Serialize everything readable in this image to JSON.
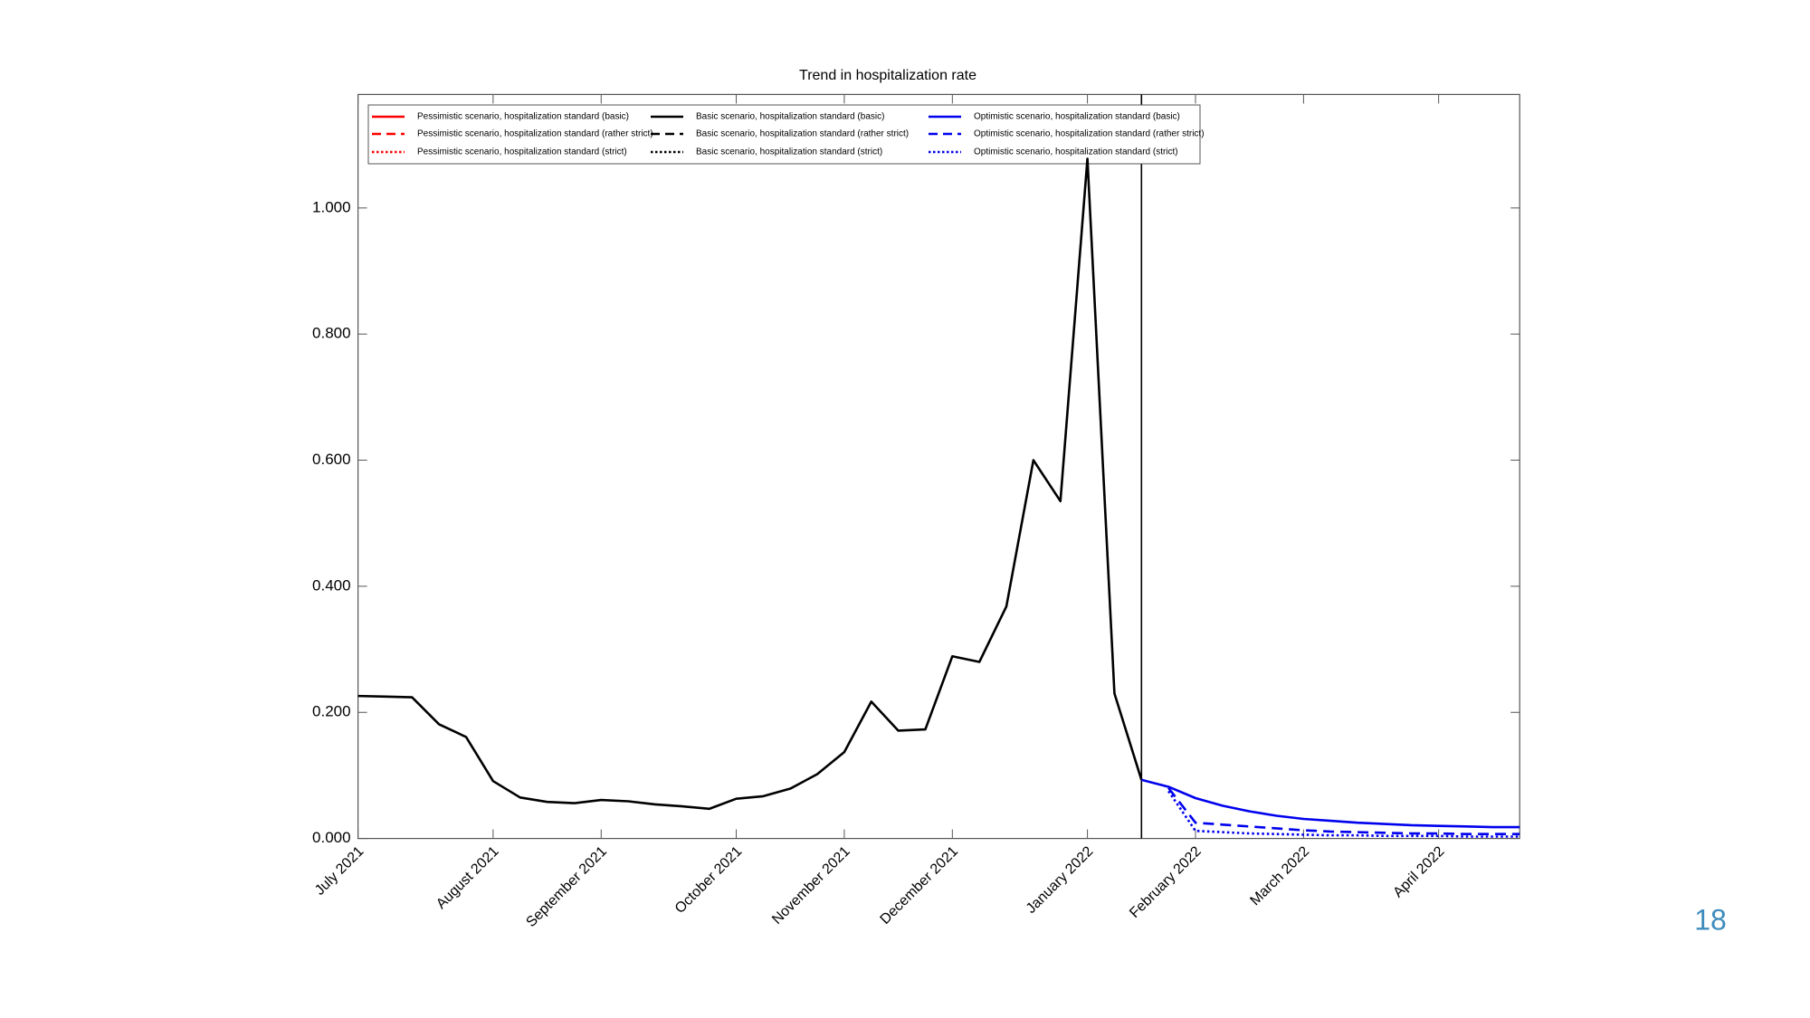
{
  "chart_data": {
    "type": "line",
    "title": "Trend in hospitalization rate",
    "categories": [
      "July 2021",
      null,
      null,
      null,
      null,
      "August 2021",
      null,
      null,
      null,
      "September 2021",
      null,
      null,
      null,
      null,
      "October 2021",
      null,
      null,
      null,
      "November 2021",
      null,
      null,
      null,
      "December 2021",
      null,
      null,
      null,
      null,
      "January 2022",
      null,
      null,
      null,
      "February 2022",
      null,
      null,
      null,
      "March 2022",
      null,
      null,
      null,
      null,
      "April 2022",
      null,
      null,
      null
    ],
    "ylim": [
      0,
      1.18
    ],
    "yticks": [
      {
        "value": 0,
        "label": "0.000"
      },
      {
        "value": 0.2,
        "label": "0.200"
      },
      {
        "value": 0.4,
        "label": "0.400"
      },
      {
        "value": 0.6,
        "label": "0.600"
      },
      {
        "value": 0.8,
        "label": "0.800"
      },
      {
        "value": 1.0,
        "label": "1.000"
      }
    ],
    "grid": false,
    "legend": "top-left",
    "page_number": "18",
    "series": [
      {
        "name": "Pessimistic scenario, hospitalization standard (basic)",
        "color": "#ff0000",
        "style": "solid",
        "values": [
          null,
          null,
          null,
          null,
          null,
          null,
          null,
          null,
          null,
          null,
          null,
          null,
          null,
          null,
          null,
          null,
          null,
          null,
          null,
          null,
          null,
          null,
          null,
          null,
          null,
          null,
          null,
          null,
          null,
          null,
          null,
          null,
          null,
          null,
          null,
          null,
          null,
          null,
          null,
          null,
          null,
          null,
          null,
          null
        ]
      },
      {
        "name": "Pessimistic scenario, hospitalization standard (rather strict)",
        "color": "#ff0000",
        "style": "dashed",
        "values": [
          null,
          null,
          null,
          null,
          null,
          null,
          null,
          null,
          null,
          null,
          null,
          null,
          null,
          null,
          null,
          null,
          null,
          null,
          null,
          null,
          null,
          null,
          null,
          null,
          null,
          null,
          null,
          null,
          null,
          null,
          null,
          null,
          null,
          null,
          null,
          null,
          null,
          null,
          null,
          null,
          null,
          null,
          null,
          null
        ]
      },
      {
        "name": "Pessimistic scenario, hospitalization standard (strict)",
        "color": "#ff0000",
        "style": "dotted",
        "values": [
          null,
          null,
          null,
          null,
          null,
          null,
          null,
          null,
          null,
          null,
          null,
          null,
          null,
          null,
          null,
          null,
          null,
          null,
          null,
          null,
          null,
          null,
          null,
          null,
          null,
          null,
          null,
          null,
          null,
          null,
          null,
          null,
          null,
          null,
          null,
          null,
          null,
          null,
          null,
          null,
          null,
          null,
          null,
          null
        ]
      },
      {
        "name": "Basic scenario, hospitalization standard (basic)",
        "color": "#000000",
        "style": "solid",
        "values": [
          0.226,
          0.225,
          0.224,
          0.181,
          0.161,
          0.091,
          0.065,
          0.058,
          0.056,
          0.061,
          0.059,
          0.054,
          0.051,
          0.047,
          0.063,
          0.067,
          0.079,
          0.102,
          0.137,
          0.217,
          0.171,
          0.173,
          0.289,
          0.28,
          0.368,
          0.6,
          0.535,
          1.078,
          0.23,
          0.093,
          null,
          null,
          null,
          null,
          null,
          null,
          null,
          null,
          null,
          null,
          null,
          null,
          null,
          null
        ]
      },
      {
        "name": "Basic scenario, hospitalization standard (rather strict)",
        "color": "#000000",
        "style": "dashed",
        "values": [
          null,
          null,
          null,
          null,
          null,
          null,
          null,
          null,
          null,
          null,
          null,
          null,
          null,
          null,
          null,
          null,
          null,
          null,
          null,
          null,
          null,
          null,
          null,
          null,
          null,
          null,
          null,
          null,
          null,
          null,
          null,
          null,
          null,
          null,
          null,
          null,
          null,
          null,
          null,
          null,
          null,
          null,
          null,
          null
        ]
      },
      {
        "name": "Basic scenario, hospitalization standard (strict)",
        "color": "#000000",
        "style": "dotted",
        "values": [
          null,
          null,
          null,
          null,
          null,
          null,
          null,
          null,
          null,
          null,
          null,
          null,
          null,
          null,
          null,
          null,
          null,
          null,
          null,
          null,
          null,
          null,
          null,
          null,
          null,
          null,
          null,
          null,
          null,
          null,
          null,
          null,
          null,
          null,
          null,
          null,
          null,
          null,
          null,
          null,
          null,
          null,
          null,
          null
        ]
      },
      {
        "name": "Optimistic scenario, hospitalization standard (basic)",
        "color": "#0000ee",
        "style": "solid",
        "values": [
          null,
          null,
          null,
          null,
          null,
          null,
          null,
          null,
          null,
          null,
          null,
          null,
          null,
          null,
          null,
          null,
          null,
          null,
          null,
          null,
          null,
          null,
          null,
          null,
          null,
          null,
          null,
          null,
          null,
          0.093,
          0.082,
          0.064,
          0.052,
          0.043,
          0.036,
          0.031,
          0.028,
          0.025,
          0.023,
          0.021,
          0.02,
          0.019,
          0.018,
          0.018
        ]
      },
      {
        "name": "Optimistic scenario, hospitalization standard (rather strict)",
        "color": "#0000ee",
        "style": "dashed",
        "values": [
          null,
          null,
          null,
          null,
          null,
          null,
          null,
          null,
          null,
          null,
          null,
          null,
          null,
          null,
          null,
          null,
          null,
          null,
          null,
          null,
          null,
          null,
          null,
          null,
          null,
          null,
          null,
          null,
          null,
          null,
          0.08,
          0.025,
          0.022,
          0.019,
          0.016,
          0.013,
          0.011,
          0.01,
          0.009,
          0.008,
          0.008,
          0.007,
          0.007,
          0.007
        ]
      },
      {
        "name": "Optimistic scenario, hospitalization standard (strict)",
        "color": "#0000ee",
        "style": "dotted",
        "values": [
          null,
          null,
          null,
          null,
          null,
          null,
          null,
          null,
          null,
          null,
          null,
          null,
          null,
          null,
          null,
          null,
          null,
          null,
          null,
          null,
          null,
          null,
          null,
          null,
          null,
          null,
          null,
          null,
          null,
          null,
          0.075,
          0.012,
          0.01,
          0.008,
          0.007,
          0.006,
          0.005,
          0.005,
          0.004,
          0.004,
          0.004,
          0.003,
          0.003,
          0.003
        ]
      }
    ]
  }
}
